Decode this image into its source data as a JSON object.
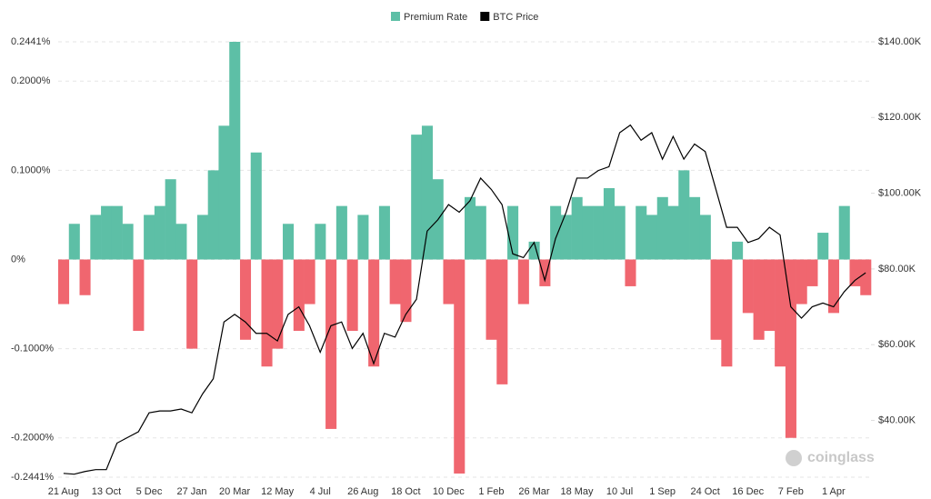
{
  "chart_data": {
    "type": "bar",
    "categories": [
      "21 Aug",
      null,
      null,
      null,
      "13 Oct",
      null,
      null,
      null,
      "5 Dec",
      null,
      null,
      null,
      "27 Jan",
      null,
      null,
      null,
      "20 Mar",
      null,
      null,
      null,
      "12 May",
      null,
      null,
      null,
      "4 Jul",
      null,
      null,
      null,
      "26 Aug",
      null,
      null,
      null,
      "18 Oct",
      null,
      null,
      null,
      "10 Dec",
      null,
      null,
      null,
      "1 Feb",
      null,
      null,
      null,
      "26 Mar",
      null,
      null,
      null,
      "18 May",
      null,
      null,
      null,
      "10 Jul",
      null,
      null,
      null,
      "1 Sep",
      null,
      null,
      null,
      "24 Oct",
      null,
      null,
      null,
      "16 Dec",
      null,
      null,
      null,
      "7 Feb",
      null,
      null,
      null,
      "1 Apr",
      null,
      null,
      null
    ],
    "series": [
      {
        "name": "Premium Rate",
        "type": "bar",
        "color": "#5dbfa6",
        "negative_color": "#f0666f",
        "values": [
          -0.05,
          0.04,
          -0.04,
          0.05,
          0.06,
          0.06,
          0.04,
          -0.08,
          0.05,
          0.06,
          0.09,
          0.04,
          -0.1,
          0.05,
          0.1,
          0.15,
          0.2441,
          -0.09,
          0.12,
          -0.12,
          -0.1,
          0.04,
          -0.08,
          -0.05,
          0.04,
          -0.19,
          0.06,
          -0.08,
          0.05,
          -0.12,
          0.06,
          -0.05,
          -0.07,
          0.14,
          0.15,
          0.09,
          -0.05,
          -0.24,
          0.07,
          0.06,
          -0.09,
          -0.14,
          0.06,
          -0.05,
          0.02,
          -0.03,
          0.06,
          0.05,
          0.07,
          0.06,
          0.06,
          0.08,
          0.06,
          -0.03,
          0.06,
          0.05,
          0.07,
          0.06,
          0.1,
          0.07,
          0.05,
          -0.09,
          -0.12,
          0.02,
          -0.06,
          -0.09,
          -0.08,
          -0.12,
          -0.2,
          -0.05,
          -0.03,
          0.03,
          -0.06,
          0.06,
          -0.03,
          -0.04
        ]
      },
      {
        "name": "BTC Price",
        "type": "line",
        "color": "#000000",
        "axis": "y2",
        "values": [
          26000,
          25800,
          26500,
          27000,
          27000,
          34000,
          35500,
          37000,
          42000,
          42500,
          42500,
          43000,
          42000,
          47000,
          51000,
          66000,
          68000,
          66000,
          63000,
          63000,
          61000,
          68000,
          70000,
          65000,
          58000,
          65000,
          66000,
          59000,
          63000,
          55000,
          63000,
          62000,
          68000,
          72000,
          90000,
          93000,
          97000,
          95000,
          98000,
          104000,
          101000,
          97000,
          84000,
          83000,
          87000,
          77000,
          88000,
          95000,
          104000,
          104000,
          106000,
          107000,
          116000,
          118000,
          114000,
          116000,
          109000,
          115000,
          109000,
          113000,
          111000,
          101000,
          91000,
          91000,
          87000,
          88000,
          91000,
          89000,
          70000,
          67000,
          70000,
          71000,
          70000,
          74000,
          77000,
          79000
        ]
      }
    ],
    "ylim": [
      -0.2441,
      0.2441
    ],
    "yticks": [
      {
        "value": -0.2441,
        "label": "-0.2441%"
      },
      {
        "value": -0.2,
        "label": "-0.2000%"
      },
      {
        "value": -0.1,
        "label": "-0.1000%"
      },
      {
        "value": 0,
        "label": "0%"
      },
      {
        "value": 0.1,
        "label": "0.1000%"
      },
      {
        "value": 0.2,
        "label": "0.2000%"
      },
      {
        "value": 0.2441,
        "label": "0.2441%"
      }
    ],
    "y2lim": [
      25000,
      140000
    ],
    "y2ticks": [
      {
        "value": 40000,
        "label": "$40.00K"
      },
      {
        "value": 60000,
        "label": "$60.00K"
      },
      {
        "value": 80000,
        "label": "$80.00K"
      },
      {
        "value": 100000,
        "label": "$100.00K"
      },
      {
        "value": 120000,
        "label": "$120.00K"
      },
      {
        "value": 140000,
        "label": "$140.00K"
      }
    ],
    "grid": true,
    "legend": "top",
    "watermark": "coinglass"
  }
}
